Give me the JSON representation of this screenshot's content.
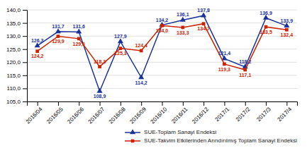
{
  "chart_data": {
    "type": "line",
    "categories": [
      "2016/04",
      "2016/05",
      "2016/06",
      "2016/07",
      "2016/08",
      "2016/09",
      "2016/10",
      "2016/11",
      "2016/12",
      "2017/1",
      "2017/2",
      "2017/3",
      "2017/4"
    ],
    "series": [
      {
        "name": "SUE-Toplam Sanayi Endeksi",
        "color": "#1a3399",
        "marker": "triangle",
        "values": [
          126.3,
          131.7,
          131.6,
          108.9,
          127.9,
          114.2,
          134.2,
          136.1,
          137.8,
          121.4,
          118.2,
          136.9,
          133.9
        ],
        "value_labels": [
          "126,3",
          "131,7",
          "131,6",
          "108,9",
          "127,9",
          "114,2",
          "134,2",
          "136,1",
          "137,8",
          "121,4",
          "118,2",
          "136,9",
          "133,9"
        ]
      },
      {
        "name": "SUE-Takvim Etkilerinden Arındırılmış Toplam Sanayi Endeksi",
        "color": "#cc2200",
        "marker": "square",
        "values": [
          124.2,
          129.9,
          129.0,
          118.3,
          125.3,
          124.4,
          134.0,
          133.3,
          134.7,
          119.3,
          117.1,
          133.5,
          132.4
        ],
        "value_labels": [
          "124,2",
          "129,9",
          "129,0",
          "118,3",
          "125,3",
          "124,4",
          "134,0",
          "133,3",
          "134,7",
          "119,3",
          "117,1",
          "133,5",
          "132,4"
        ]
      }
    ],
    "ylim": [
      105.0,
      140.0
    ],
    "yticks": [
      {
        "value": 105.0,
        "label": "105,0"
      },
      {
        "value": 110.0,
        "label": "110,0"
      },
      {
        "value": 115.0,
        "label": "115,0"
      },
      {
        "value": 120.0,
        "label": "120,0"
      },
      {
        "value": 125.0,
        "label": "125,0"
      },
      {
        "value": 130.0,
        "label": "130,0"
      },
      {
        "value": 135.0,
        "label": "135,0"
      },
      {
        "value": 140.0,
        "label": "140,0"
      }
    ],
    "grid": true,
    "legend": "lower right",
    "data_labels": true
  }
}
